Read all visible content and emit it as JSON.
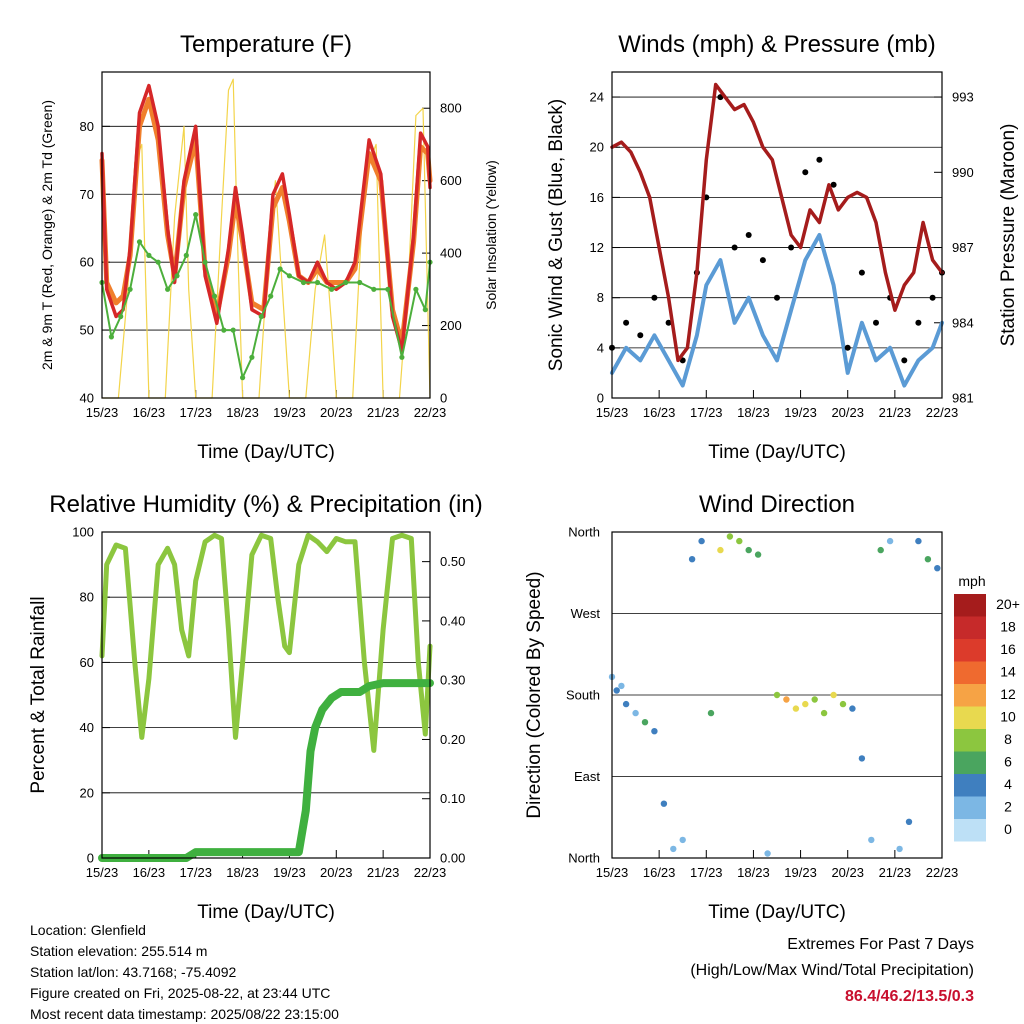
{
  "chart_data": [
    {
      "type": "line",
      "title": "Temperature (F)",
      "xlabel": "Time (Day/UTC)",
      "ylabel": "2m & 9m T (Red, Orange) & 2m Td (Green)",
      "y2label": "Solar Insolation (Yellow)",
      "x_ticks": [
        "15/23",
        "16/23",
        "17/23",
        "18/23",
        "19/23",
        "20/23",
        "21/23",
        "22/23"
      ],
      "ylim": [
        40,
        88
      ],
      "y_ticks": [
        40,
        50,
        60,
        70,
        80
      ],
      "y2lim": [
        0,
        900
      ],
      "y2_ticks": [
        0,
        200,
        400,
        600,
        800
      ],
      "series": [
        {
          "color": "#d62728",
          "x": [
            0,
            0.1,
            0.3,
            0.45,
            0.6,
            0.8,
            1.0,
            1.2,
            1.4,
            1.55,
            1.75,
            2.0,
            2.2,
            2.45,
            2.7,
            2.85,
            3.0,
            3.2,
            3.45,
            3.65,
            3.85,
            4.0,
            4.2,
            4.4,
            4.6,
            4.8,
            5.0,
            5.2,
            5.4,
            5.7,
            5.95,
            6.2,
            6.4,
            6.65,
            6.8,
            6.95,
            7.0
          ],
          "values": [
            76,
            56,
            52,
            53,
            62,
            82,
            86,
            80,
            65,
            57,
            72,
            80,
            58,
            51,
            62,
            71,
            64,
            53,
            52,
            70,
            73,
            67,
            58,
            57,
            60,
            57,
            56,
            57,
            60,
            78,
            73,
            52,
            47,
            64,
            79,
            77,
            71
          ]
        },
        {
          "color": "#f07f2c",
          "x": [
            0,
            0.1,
            0.3,
            0.45,
            0.6,
            0.8,
            1.0,
            1.2,
            1.4,
            1.55,
            1.75,
            2.0,
            2.2,
            2.45,
            2.7,
            2.85,
            3.0,
            3.2,
            3.45,
            3.65,
            3.85,
            4.0,
            4.2,
            4.4,
            4.6,
            4.8,
            5.0,
            5.2,
            5.4,
            5.7,
            5.95,
            6.2,
            6.4,
            6.65,
            6.8,
            6.95,
            7.0
          ],
          "values": [
            75,
            57,
            54,
            55,
            61,
            80,
            84,
            78,
            64,
            58,
            71,
            78,
            59,
            52,
            61,
            69,
            63,
            54,
            53,
            68,
            71,
            66,
            58,
            57,
            59,
            57,
            57,
            57,
            59,
            76,
            72,
            53,
            48,
            63,
            77,
            76,
            72
          ]
        },
        {
          "color": "#4caf3c",
          "x": [
            0,
            0.2,
            0.4,
            0.6,
            0.8,
            1.0,
            1.2,
            1.4,
            1.6,
            1.8,
            2.0,
            2.2,
            2.4,
            2.6,
            2.8,
            3.0,
            3.2,
            3.4,
            3.6,
            3.8,
            4.0,
            4.3,
            4.6,
            4.9,
            5.2,
            5.5,
            5.8,
            6.1,
            6.4,
            6.7,
            6.9,
            7.0
          ],
          "values": [
            57,
            49,
            52,
            56,
            63,
            61,
            60,
            56,
            58,
            61,
            67,
            60,
            55,
            50,
            50,
            43,
            46,
            52,
            55,
            59,
            58,
            57,
            57,
            56,
            57,
            57,
            56,
            56,
            46,
            56,
            53,
            60
          ]
        },
        {
          "color": "#f3d44a",
          "x": [
            0,
            0.35,
            0.55,
            0.7,
            0.85,
            1.0,
            1.35,
            1.55,
            1.75,
            1.85,
            2.0,
            2.35,
            2.55,
            2.7,
            2.8,
            2.9,
            3.0,
            3.35,
            3.55,
            3.7,
            3.85,
            4.0,
            4.35,
            4.55,
            4.75,
            4.9,
            5.0,
            5.35,
            5.55,
            5.7,
            5.85,
            6.0,
            6.35,
            6.55,
            6.7,
            6.85,
            7.0
          ],
          "values": [
            0,
            0,
            300,
            650,
            700,
            0,
            0,
            500,
            750,
            300,
            0,
            0,
            500,
            850,
            880,
            400,
            0,
            0,
            400,
            600,
            300,
            0,
            0,
            300,
            450,
            200,
            0,
            0,
            500,
            650,
            700,
            0,
            0,
            350,
            780,
            800,
            0
          ]
        }
      ]
    },
    {
      "type": "line",
      "title": "Winds (mph) & Pressure (mb)",
      "xlabel": "Time (Day/UTC)",
      "ylabel": "Sonic Wind & Gust (Blue, Black)",
      "y2label": "Station Pressure (Maroon)",
      "x_ticks": [
        "15/23",
        "16/23",
        "17/23",
        "18/23",
        "19/23",
        "20/23",
        "21/23",
        "22/23"
      ],
      "ylim": [
        0,
        26
      ],
      "y_ticks": [
        0,
        4,
        8,
        12,
        16,
        20,
        24
      ],
      "y2lim": [
        981,
        994
      ],
      "y2_ticks": [
        981,
        984,
        987,
        990,
        993
      ],
      "series": [
        {
          "color": "#5b9bd5",
          "x": [
            0,
            0.3,
            0.6,
            0.9,
            1.2,
            1.5,
            1.8,
            2.0,
            2.3,
            2.6,
            2.9,
            3.2,
            3.5,
            3.8,
            4.1,
            4.4,
            4.7,
            5.0,
            5.3,
            5.6,
            5.9,
            6.2,
            6.5,
            6.8,
            7.0
          ],
          "values": [
            2,
            4,
            3,
            5,
            3,
            1,
            5,
            9,
            11,
            6,
            8,
            5,
            3,
            7,
            11,
            13,
            9,
            2,
            6,
            3,
            4,
            1,
            3,
            4,
            6
          ]
        },
        {
          "color": "#000000",
          "x": [
            0,
            0.3,
            0.6,
            0.9,
            1.2,
            1.5,
            1.8,
            2.0,
            2.3,
            2.6,
            2.9,
            3.2,
            3.5,
            3.8,
            4.1,
            4.4,
            4.7,
            5.0,
            5.3,
            5.6,
            5.9,
            6.2,
            6.5,
            6.8,
            7.0
          ],
          "values": [
            4,
            6,
            5,
            8,
            6,
            3,
            10,
            16,
            24,
            12,
            13,
            11,
            8,
            12,
            18,
            19,
            17,
            4,
            10,
            6,
            8,
            3,
            6,
            8,
            10
          ]
        },
        {
          "color": "#a51c1c",
          "x": [
            0,
            0.2,
            0.4,
            0.6,
            0.8,
            1.0,
            1.2,
            1.4,
            1.6,
            1.8,
            2.0,
            2.2,
            2.4,
            2.6,
            2.8,
            3.0,
            3.2,
            3.4,
            3.6,
            3.8,
            4.0,
            4.2,
            4.4,
            4.6,
            4.8,
            5.0,
            5.2,
            5.4,
            5.6,
            5.8,
            6.0,
            6.2,
            6.4,
            6.6,
            6.8,
            7.0
          ],
          "values": [
            991,
            991.2,
            990.8,
            990,
            989,
            987,
            985,
            982.5,
            983,
            986,
            990.5,
            993.5,
            993,
            992.5,
            992.7,
            992,
            991,
            990.5,
            989,
            987.5,
            987,
            988.5,
            988,
            989.5,
            988.5,
            989,
            989.2,
            989,
            988,
            986,
            984.5,
            985.5,
            986,
            988,
            986.5,
            986
          ]
        }
      ]
    },
    {
      "type": "line",
      "title": "Relative Humidity (%) & Precipitation (in)",
      "xlabel": "Time (Day/UTC)",
      "ylabel": "Percent & Total Rainfall",
      "x_ticks": [
        "15/23",
        "16/23",
        "17/23",
        "18/23",
        "19/23",
        "20/23",
        "21/23",
        "22/23"
      ],
      "ylim": [
        0,
        100
      ],
      "y_ticks": [
        0,
        20,
        40,
        60,
        80,
        100
      ],
      "y2lim": [
        0,
        0.55
      ],
      "y2_ticks": [
        "0.00",
        "0.10",
        "0.20",
        "0.30",
        "0.40",
        "0.50"
      ],
      "series": [
        {
          "color": "#8cc63f",
          "x": [
            0,
            0.1,
            0.3,
            0.5,
            0.7,
            0.85,
            1.0,
            1.2,
            1.4,
            1.55,
            1.7,
            1.85,
            2.0,
            2.2,
            2.4,
            2.55,
            2.7,
            2.85,
            3.0,
            3.2,
            3.4,
            3.6,
            3.75,
            3.9,
            4.0,
            4.2,
            4.4,
            4.6,
            4.8,
            5.0,
            5.2,
            5.4,
            5.6,
            5.8,
            6.0,
            6.2,
            6.4,
            6.6,
            6.75,
            6.9,
            7.0
          ],
          "values": [
            62,
            90,
            96,
            95,
            60,
            37,
            55,
            90,
            95,
            90,
            70,
            62,
            85,
            97,
            99,
            98,
            70,
            37,
            60,
            93,
            99,
            98,
            80,
            65,
            63,
            90,
            99,
            97,
            94,
            98,
            97,
            97,
            60,
            33,
            70,
            98,
            99,
            98,
            60,
            38,
            65
          ]
        },
        {
          "color": "#3fb03f",
          "x": [
            0,
            0.5,
            1.0,
            1.5,
            1.8,
            2.0,
            2.5,
            3.0,
            3.5,
            4.0,
            4.2,
            4.35,
            4.45,
            4.55,
            4.7,
            4.9,
            5.1,
            5.3,
            5.5,
            5.7,
            6.0,
            6.5,
            7.0
          ],
          "values_in": [
            0,
            0,
            0,
            0,
            0,
            0.01,
            0.01,
            0.01,
            0.01,
            0.01,
            0.01,
            0.08,
            0.18,
            0.22,
            0.25,
            0.27,
            0.28,
            0.28,
            0.28,
            0.29,
            0.295,
            0.295,
            0.295
          ]
        }
      ]
    },
    {
      "type": "scatter",
      "title": "Wind Direction",
      "xlabel": "Time (Day/UTC)",
      "ylabel": "Direction (Colored By Speed)",
      "x_ticks": [
        "15/23",
        "16/23",
        "17/23",
        "18/23",
        "19/23",
        "20/23",
        "21/23",
        "22/23"
      ],
      "y_ticks": [
        "North",
        "East",
        "South",
        "West",
        "North"
      ],
      "colorbar": {
        "unit": "mph",
        "labels": [
          "20+",
          "18",
          "16",
          "14",
          "12",
          "10",
          "8",
          "6",
          "4",
          "2",
          "0"
        ],
        "colors": [
          "#a51c1c",
          "#c62a2a",
          "#dc3b2b",
          "#ef6a2f",
          "#f6a345",
          "#e8d94f",
          "#8cc63f",
          "#4aa55f",
          "#3f7fbf",
          "#7cb7e4",
          "#bde0f6"
        ]
      },
      "series": [
        {
          "x": [
            0.0,
            0.1,
            0.2,
            0.3,
            0.5,
            0.7,
            0.9,
            1.1,
            1.3,
            1.5,
            1.7,
            1.9,
            2.1,
            2.3,
            2.5,
            2.7,
            2.9,
            3.1,
            3.3,
            3.5,
            3.7,
            3.9,
            4.1,
            4.3,
            4.5,
            4.7,
            4.9,
            5.1,
            5.3,
            5.5,
            5.7,
            5.9,
            6.1,
            6.3,
            6.5,
            6.7,
            6.9
          ],
          "dir": [
            200,
            185,
            190,
            170,
            160,
            150,
            140,
            60,
            10,
            20,
            330,
            350,
            160,
            340,
            355,
            350,
            340,
            335,
            5,
            180,
            175,
            165,
            170,
            175,
            160,
            180,
            170,
            165,
            110,
            20,
            340,
            350,
            10,
            40,
            350,
            330,
            320
          ],
          "speed": [
            3,
            5,
            2,
            4,
            3,
            6,
            5,
            4,
            3,
            2,
            5,
            4,
            7,
            11,
            9,
            8,
            7,
            6,
            3,
            9,
            12,
            11,
            10,
            8,
            9,
            10,
            8,
            4,
            5,
            2,
            6,
            3,
            3,
            5,
            4,
            6,
            4
          ]
        }
      ]
    }
  ],
  "info": {
    "location": "Location: Glenfield",
    "elevation": "Station elevation: 255.514 m",
    "latlon": "Station lat/lon: 43.7168; -75.4092",
    "created": "Figure created on Fri, 2025-08-22, at 23:44 UTC",
    "recent": "Most recent data timestamp: 2025/08/22 23:15:00"
  },
  "extremes": {
    "title": "Extremes For Past 7 Days",
    "subtitle": "(High/Low/Max Wind/Total Precipitation)",
    "values": "86.4/46.2/13.5/0.3"
  }
}
